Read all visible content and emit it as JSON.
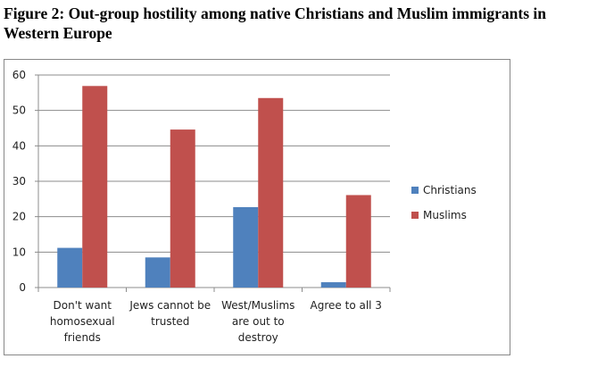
{
  "chart_data": {
    "type": "bar",
    "title": "Figure 2: Out-group hostility among native Christians and Muslim immigrants in Western Europe",
    "categories": [
      [
        "Don't want",
        "homosexual",
        "friends"
      ],
      [
        "Jews cannot be",
        "trusted"
      ],
      [
        "West/Muslims",
        "are out to",
        "destroy"
      ],
      [
        "Agree to all 3"
      ]
    ],
    "series": [
      {
        "name": "Christians",
        "values": [
          11.2,
          8.5,
          22.7,
          1.5
        ],
        "color": "#4f81bd"
      },
      {
        "name": "Muslims",
        "values": [
          56.9,
          44.6,
          53.5,
          26.1
        ],
        "color": "#c0504d"
      }
    ],
    "yticks": [
      0,
      10,
      20,
      30,
      40,
      50,
      60
    ],
    "ylim": [
      0,
      60
    ],
    "xlabel": "",
    "ylabel": "",
    "grid": true,
    "legend": "right"
  }
}
